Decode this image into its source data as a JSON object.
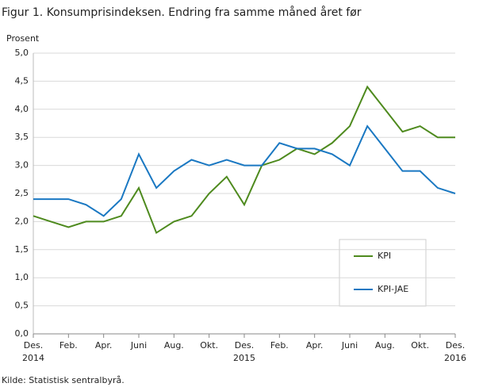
{
  "chart_data": {
    "type": "line",
    "title": "Figur 1. Konsumprisindeksen. Endring fra samme måned året før",
    "y_label": "Prosent",
    "source": "Kilde: Statistisk sentralbyrå.",
    "categories": [
      [
        "Des.",
        "2014"
      ],
      null,
      [
        "Feb."
      ],
      null,
      [
        "Apr."
      ],
      null,
      [
        "Juni"
      ],
      null,
      [
        "Aug."
      ],
      null,
      [
        "Okt."
      ],
      null,
      [
        "Des.",
        "2015"
      ],
      null,
      [
        "Feb."
      ],
      null,
      [
        "Apr."
      ],
      null,
      [
        "Juni"
      ],
      null,
      [
        "Aug."
      ],
      null,
      [
        "Okt."
      ],
      null,
      [
        "Des.",
        "2016"
      ]
    ],
    "series": [
      {
        "name": "KPI",
        "color": "#4e8a1e",
        "values": [
          2.1,
          2.0,
          1.9,
          2.0,
          2.0,
          2.1,
          2.6,
          1.8,
          2.0,
          2.1,
          2.5,
          2.8,
          2.3,
          3.0,
          3.1,
          3.3,
          3.2,
          3.4,
          3.7,
          4.4,
          4.0,
          3.6,
          3.7,
          3.5,
          3.5
        ]
      },
      {
        "name": "KPI-JAE",
        "color": "#1a78c2",
        "values": [
          2.4,
          2.4,
          2.4,
          2.3,
          2.1,
          2.4,
          3.2,
          2.6,
          2.9,
          3.1,
          3.0,
          3.1,
          3.0,
          3.0,
          3.4,
          3.3,
          3.3,
          3.2,
          3.0,
          3.7,
          3.3,
          2.9,
          2.9,
          2.6,
          2.5
        ]
      }
    ],
    "ylim": [
      0,
      5
    ],
    "yticks": [
      {
        "value": 0,
        "label": "0,0"
      },
      {
        "value": 0.5,
        "label": "0,5"
      },
      {
        "value": 1,
        "label": "1,0"
      },
      {
        "value": 1.5,
        "label": "1,5"
      },
      {
        "value": 2,
        "label": "2,0"
      },
      {
        "value": 2.5,
        "label": "2,5"
      },
      {
        "value": 3,
        "label": "3,0"
      },
      {
        "value": 3.5,
        "label": "3,5"
      },
      {
        "value": 4,
        "label": "4,0"
      },
      {
        "value": 4.5,
        "label": "4,5"
      },
      {
        "value": 5,
        "label": "5,0"
      }
    ],
    "grid": true
  }
}
